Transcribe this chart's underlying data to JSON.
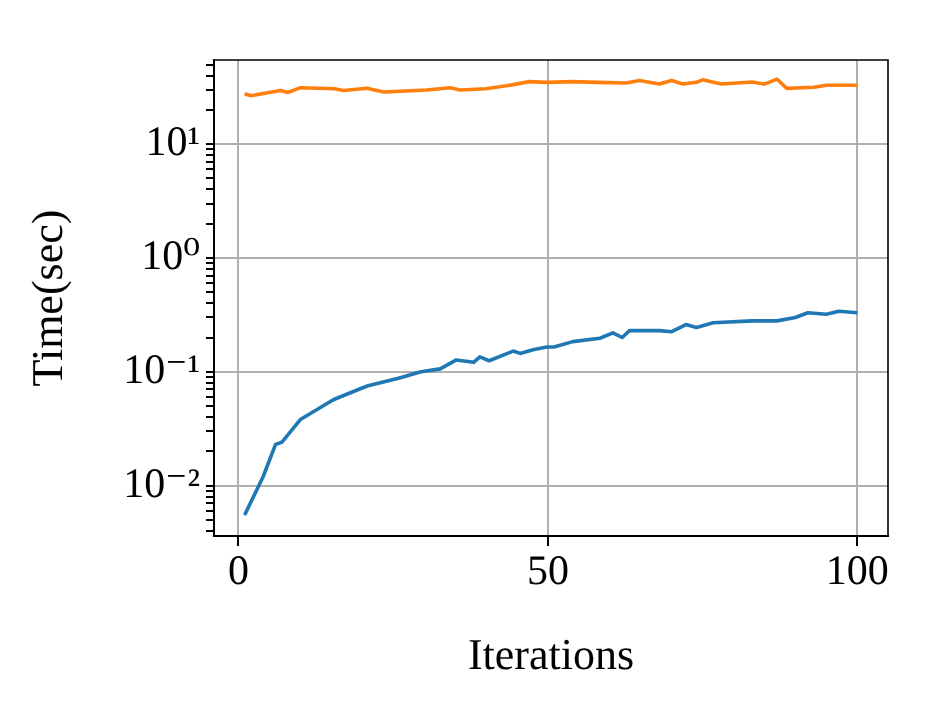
{
  "chart_data": {
    "type": "line",
    "xlabel": "Iterations",
    "ylabel": "Time(sec)",
    "log": "y",
    "grid": true,
    "legend": false,
    "marker": "none",
    "line_style": "solid",
    "xlim": [
      -3.95,
      104.95
    ],
    "xticks": [
      0,
      50,
      100
    ],
    "ylim": [
      0.0036,
      55
    ],
    "yticks": [
      {
        "value": 0.004,
        "label": null
      },
      {
        "value": 0.005,
        "label": null
      },
      {
        "value": 0.006,
        "label": null
      },
      {
        "value": 0.007,
        "label": null
      },
      {
        "value": 0.008,
        "label": null
      },
      {
        "value": 0.009,
        "label": null
      },
      {
        "value": 0.01,
        "label": "10⁻²"
      },
      {
        "value": 0.02,
        "label": null
      },
      {
        "value": 0.03,
        "label": null
      },
      {
        "value": 0.04,
        "label": null
      },
      {
        "value": 0.05,
        "label": null
      },
      {
        "value": 0.06,
        "label": null
      },
      {
        "value": 0.07,
        "label": null
      },
      {
        "value": 0.08,
        "label": null
      },
      {
        "value": 0.09,
        "label": null
      },
      {
        "value": 0.1,
        "label": "10⁻¹"
      },
      {
        "value": 0.2,
        "label": null
      },
      {
        "value": 0.3,
        "label": null
      },
      {
        "value": 0.4,
        "label": null
      },
      {
        "value": 0.5,
        "label": null
      },
      {
        "value": 0.6,
        "label": null
      },
      {
        "value": 0.7,
        "label": null
      },
      {
        "value": 0.8,
        "label": null
      },
      {
        "value": 0.9,
        "label": null
      },
      {
        "value": 1,
        "label": "10⁰"
      },
      {
        "value": 2,
        "label": null
      },
      {
        "value": 3,
        "label": null
      },
      {
        "value": 4,
        "label": null
      },
      {
        "value": 5,
        "label": null
      },
      {
        "value": 6,
        "label": null
      },
      {
        "value": 7,
        "label": null
      },
      {
        "value": 8,
        "label": null
      },
      {
        "value": 9,
        "label": null
      },
      {
        "value": 10,
        "label": "10¹"
      },
      {
        "value": 20,
        "label": null
      },
      {
        "value": 30,
        "label": null
      },
      {
        "value": 40,
        "label": null
      },
      {
        "value": 50,
        "label": null
      }
    ],
    "series": [
      {
        "color": "#1f77b4",
        "x": [
          1,
          4,
          6,
          7,
          10,
          15.4,
          20.8,
          26,
          29.5,
          32.6,
          35.2,
          38,
          39,
          40.5,
          44.4,
          45.5,
          47.6,
          49.8,
          51,
          54,
          58.4,
          60.5,
          62,
          63.2,
          68,
          70,
          72.3,
          74,
          76.7,
          83,
          87,
          90,
          92,
          95,
          97,
          100
        ],
        "values": [
          0.0055,
          0.012,
          0.023,
          0.024,
          0.038,
          0.057,
          0.075,
          0.088,
          0.1,
          0.106,
          0.127,
          0.121,
          0.135,
          0.125,
          0.152,
          0.145,
          0.156,
          0.165,
          0.165,
          0.184,
          0.197,
          0.22,
          0.2,
          0.23,
          0.23,
          0.225,
          0.26,
          0.245,
          0.27,
          0.28,
          0.28,
          0.3,
          0.33,
          0.32,
          0.34,
          0.33
        ]
      },
      {
        "color": "#ff7f0e",
        "x": [
          1,
          2,
          6.8,
          8,
          10,
          15.5,
          17,
          20.8,
          22,
          23.5,
          30.4,
          34.2,
          35.8,
          40,
          43.3,
          47,
          49.8,
          54,
          58,
          62.6,
          64.8,
          68,
          70,
          71.8,
          74,
          75,
          78,
          83,
          85,
          87,
          88.6,
          93,
          95,
          100
        ],
        "values": [
          27.8,
          26.7,
          29.7,
          28.5,
          31.4,
          30.7,
          29.7,
          31,
          30,
          28.8,
          30,
          31.4,
          30,
          30.7,
          32.6,
          35.5,
          35,
          35.5,
          35,
          34.5,
          36.3,
          33.8,
          36.3,
          33.8,
          35,
          36.8,
          33.8,
          35.2,
          33.8,
          37.4,
          31,
          31.7,
          33,
          33
        ]
      }
    ]
  }
}
